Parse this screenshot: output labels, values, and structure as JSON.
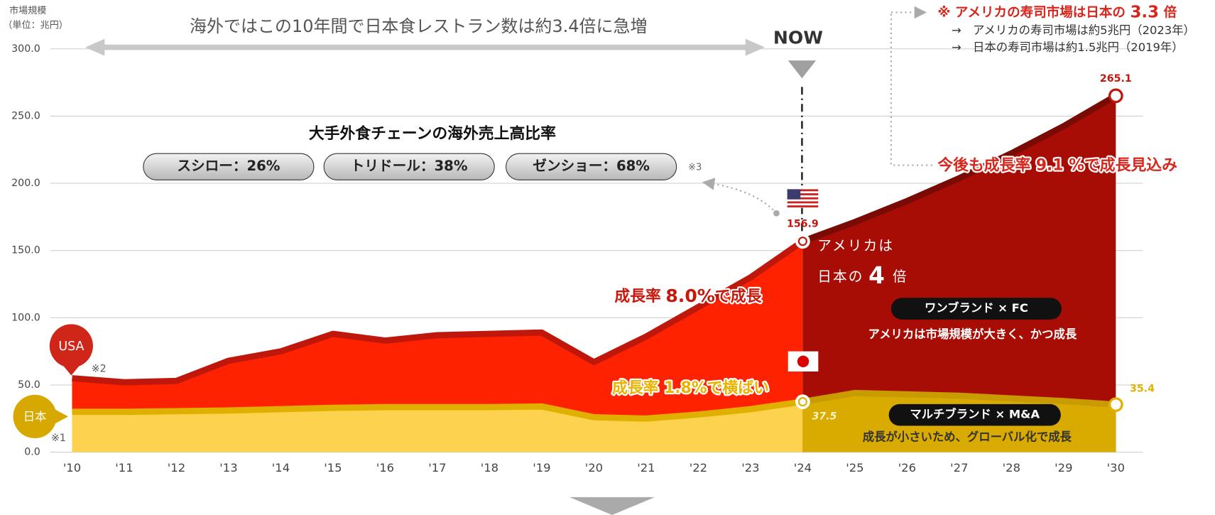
{
  "chart_data": {
    "type": "area",
    "y_title": "市場規模",
    "y_unit": "（単位：兆円）",
    "categories": [
      "'10",
      "'11",
      "'12",
      "'13",
      "'14",
      "'15",
      "'16",
      "'17",
      "'18",
      "'19",
      "'20",
      "'21",
      "'22",
      "'23",
      "'24",
      "'25",
      "'26",
      "'27",
      "'28",
      "'29",
      "'30"
    ],
    "forecast_from": "'24",
    "series": [
      {
        "name": "USA",
        "color": "#ff2200",
        "forecast_color": "#a80d05",
        "line_color": "#c0170c",
        "forecast_line_color": "#7a0a04",
        "values": [
          55,
          52,
          53,
          68,
          75,
          88,
          83,
          87,
          88,
          89,
          67,
          86,
          108,
          130,
          156.9,
          171.2,
          186.8,
          203.8,
          222.3,
          242.5,
          265.1
        ],
        "value_labels": [
          null,
          null,
          null,
          null,
          null,
          null,
          null,
          null,
          null,
          null,
          null,
          null,
          null,
          null,
          "156.9",
          null,
          null,
          null,
          null,
          null,
          "265.1"
        ]
      },
      {
        "name": "日本",
        "color": "#fdd24e",
        "forecast_color": "#d9aa00",
        "line_color": "#e0b000",
        "forecast_line_color": "#c89c00",
        "values": [
          30,
          30,
          30.5,
          31,
          32,
          33,
          33.5,
          33.5,
          33.5,
          34,
          26,
          25,
          28,
          32,
          37.5,
          44,
          43,
          42,
          40,
          38,
          35.4
        ],
        "value_labels": [
          null,
          null,
          null,
          null,
          null,
          null,
          null,
          null,
          null,
          null,
          null,
          null,
          null,
          null,
          "37.5",
          null,
          null,
          null,
          null,
          null,
          "35.4"
        ]
      }
    ],
    "ylim": [
      0,
      300
    ],
    "yticks": [
      {
        "value": 0,
        "label": "0.0"
      },
      {
        "value": 50,
        "label": "50.0"
      },
      {
        "value": 100,
        "label": "100.0"
      },
      {
        "value": 150,
        "label": "150.0"
      },
      {
        "value": 200,
        "label": "200.0"
      },
      {
        "value": 250,
        "label": "250.0"
      },
      {
        "value": 300,
        "label": "300.0"
      }
    ],
    "grid": true,
    "annotations": {
      "banner": "海外ではこの10年間で日本食レストラン数は約3.4倍に急増",
      "now": "NOW",
      "sushi_head": "※ アメリカの寿司市場は日本の",
      "sushi_ratio": "3.3",
      "sushi_unit": "倍",
      "sushi_us": "→　アメリカの寿司市場は約5兆円（2023年）",
      "sushi_jp": "→　日本の寿司市場は約1.5兆円（2019年）",
      "chain_title": "大手外食チェーンの海外売上高比率",
      "chain_1": "スシロー：26%",
      "chain_2": "トリドール：38%",
      "chain_3": "ゼンショー：68%",
      "note_3": "※3",
      "outlook": "今後も成長率 9.1 %で成長見込み",
      "us_vs_jp_1": "アメリカは",
      "us_vs_jp_2": "日本の",
      "us_vs_jp_ratio": "4",
      "us_vs_jp_unit": "倍",
      "us_growth_pre": "成長率",
      "us_growth_rate": "8.0%",
      "us_growth_post": "で成長",
      "jp_growth": "成長率 1.8%で横ばい",
      "us_model": "ワンブランド × FC",
      "us_model_note": "アメリカは市場規模が大きく、かつ成長",
      "jp_model": "マルチブランド × M&A",
      "jp_model_note": "成長が小さいため、グローバル化で成長",
      "note_2": "※2",
      "note_1": "※1"
    }
  }
}
